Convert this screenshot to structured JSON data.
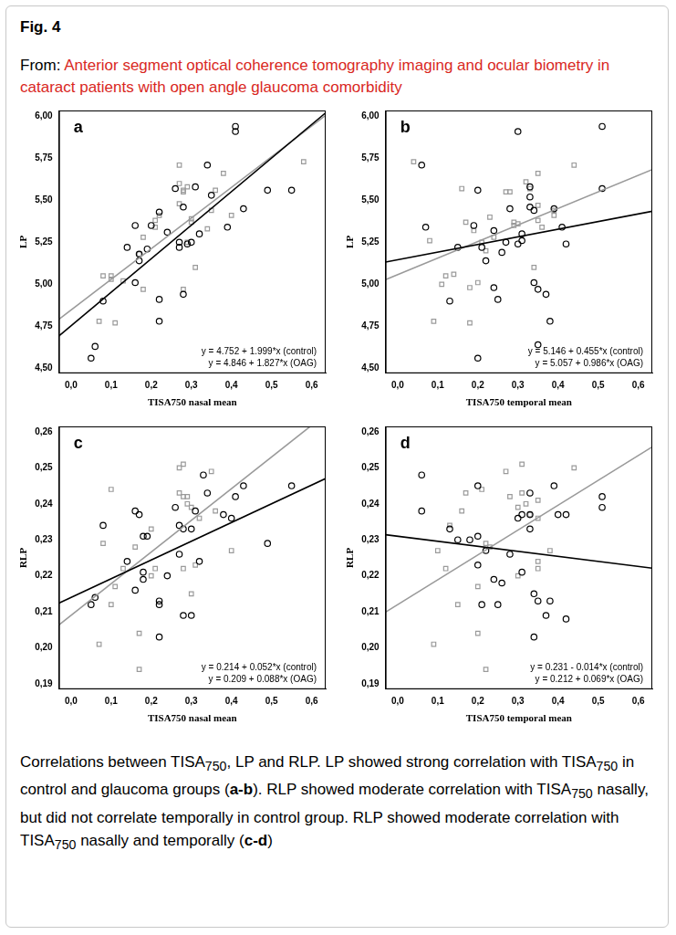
{
  "header": {
    "label": "Fig. 4",
    "from": "From: ",
    "source_title": "Anterior segment optical coherence tomography imaging and ocular biometry in cataract patients with open angle glaucoma comorbidity"
  },
  "chart_data": [
    {
      "type": "scatter",
      "panel": "a",
      "x_label": "TISA750 nasal mean",
      "y_label": "LP",
      "grid": false,
      "xlim": [
        -0.03,
        0.635
      ],
      "xticks": [
        {
          "value": 0,
          "label": "0,0"
        },
        {
          "value": 0.1,
          "label": "0,1"
        },
        {
          "value": 0.2,
          "label": "0,2"
        },
        {
          "value": 0.3,
          "label": "0,3"
        },
        {
          "value": 0.4,
          "label": "0,4"
        },
        {
          "value": 0.5,
          "label": "0,5"
        },
        {
          "value": 0.6,
          "label": "0,6"
        }
      ],
      "ylim": [
        4.47,
        6.035
      ],
      "yticks": [
        {
          "value": 4.5,
          "label": "4,50"
        },
        {
          "value": 4.75,
          "label": "4,75"
        },
        {
          "value": 5.0,
          "label": "5,00"
        },
        {
          "value": 5.25,
          "label": "5,25"
        },
        {
          "value": 5.5,
          "label": "5,50"
        },
        {
          "value": 5.75,
          "label": "5,75"
        },
        {
          "value": 6.0,
          "label": "6,00"
        }
      ],
      "series": [
        {
          "color": "#000000",
          "marker": "circle",
          "x": [
            0.05,
            0.06,
            0.08,
            0.14,
            0.16,
            0.16,
            0.17,
            0.17,
            0.19,
            0.2,
            0.22,
            0.22,
            0.22,
            0.24,
            0.26,
            0.27,
            0.27,
            0.28,
            0.28,
            0.29,
            0.3,
            0.31,
            0.32,
            0.34,
            0.35,
            0.39,
            0.41,
            0.41,
            0.43,
            0.49,
            0.55
          ],
          "values": [
            4.56,
            4.63,
            4.9,
            5.22,
            5.35,
            5.01,
            5.18,
            5.14,
            5.21,
            5.35,
            5.43,
            4.78,
            4.91,
            5.31,
            5.57,
            5.22,
            5.25,
            4.94,
            5.46,
            5.24,
            5.25,
            5.58,
            5.3,
            5.71,
            5.53,
            5.34,
            5.94,
            5.91,
            5.45,
            5.56,
            5.56
          ],
          "fit": {
            "intercept": 4.752,
            "slope": 1.999,
            "label": "y = 4.752 + 1.999*x (control)"
          }
        },
        {
          "color": "#9a9a9a",
          "marker": "square",
          "x": [
            0.07,
            0.08,
            0.1,
            0.1,
            0.11,
            0.13,
            0.17,
            0.18,
            0.18,
            0.21,
            0.21,
            0.22,
            0.27,
            0.27,
            0.27,
            0.28,
            0.28,
            0.28,
            0.29,
            0.3,
            0.3,
            0.31,
            0.34,
            0.35,
            0.36,
            0.38,
            0.4,
            0.29,
            0.58
          ],
          "values": [
            4.78,
            5.05,
            5.05,
            5.03,
            4.77,
            5.02,
            5.18,
            4.97,
            5.28,
            5.38,
            5.34,
            5.41,
            5.71,
            5.6,
            5.48,
            5.55,
            5.56,
            4.97,
            5.58,
            5.39,
            5.37,
            5.1,
            5.33,
            5.44,
            5.56,
            5.66,
            5.41,
            5.25,
            5.73
          ],
          "fit": {
            "intercept": 4.846,
            "slope": 1.827,
            "label": "y = 4.846 + 1.827*x (OAG)"
          }
        }
      ]
    },
    {
      "type": "scatter",
      "panel": "b",
      "x_label": "TISA750 temporal mean",
      "y_label": "LP",
      "grid": false,
      "xlim": [
        -0.03,
        0.635
      ],
      "xticks": [
        {
          "value": 0,
          "label": "0,0"
        },
        {
          "value": 0.1,
          "label": "0,1"
        },
        {
          "value": 0.2,
          "label": "0,2"
        },
        {
          "value": 0.3,
          "label": "0,3"
        },
        {
          "value": 0.4,
          "label": "0,4"
        },
        {
          "value": 0.5,
          "label": "0,5"
        },
        {
          "value": 0.6,
          "label": "0,6"
        }
      ],
      "ylim": [
        4.47,
        6.035
      ],
      "yticks": [
        {
          "value": 4.5,
          "label": "4,50"
        },
        {
          "value": 4.75,
          "label": "4,75"
        },
        {
          "value": 5.0,
          "label": "5,00"
        },
        {
          "value": 5.25,
          "label": "5,25"
        },
        {
          "value": 5.5,
          "label": "5,50"
        },
        {
          "value": 5.75,
          "label": "5,75"
        },
        {
          "value": 6.0,
          "label": "6,00"
        }
      ],
      "series": [
        {
          "color": "#000000",
          "marker": "circle",
          "x": [
            0.06,
            0.07,
            0.13,
            0.15,
            0.19,
            0.2,
            0.2,
            0.21,
            0.22,
            0.24,
            0.24,
            0.25,
            0.26,
            0.27,
            0.28,
            0.3,
            0.3,
            0.31,
            0.31,
            0.33,
            0.33,
            0.33,
            0.34,
            0.34,
            0.35,
            0.35,
            0.37,
            0.38,
            0.39,
            0.41,
            0.42,
            0.51,
            0.51
          ],
          "values": [
            5.71,
            5.34,
            4.9,
            5.22,
            5.35,
            5.56,
            4.56,
            5.22,
            5.14,
            5.32,
            4.98,
            4.91,
            5.19,
            5.25,
            5.45,
            5.91,
            5.24,
            5.26,
            5.3,
            5.46,
            5.58,
            5.52,
            5.44,
            5.01,
            4.64,
            4.97,
            4.94,
            4.78,
            5.45,
            5.34,
            5.24,
            5.94,
            5.57
          ],
          "fit": {
            "intercept": 5.146,
            "slope": 0.455,
            "label": "y = 5.146 + 0.455*x (control)"
          }
        },
        {
          "color": "#9a9a9a",
          "marker": "square",
          "x": [
            0.04,
            0.08,
            0.09,
            0.11,
            0.12,
            0.14,
            0.16,
            0.17,
            0.18,
            0.19,
            0.2,
            0.21,
            0.22,
            0.23,
            0.24,
            0.27,
            0.28,
            0.29,
            0.29,
            0.3,
            0.32,
            0.33,
            0.34,
            0.35,
            0.35,
            0.35,
            0.36,
            0.39,
            0.39,
            0.44,
            0.18
          ],
          "values": [
            5.73,
            5.26,
            4.78,
            5.0,
            5.05,
            5.06,
            5.57,
            5.37,
            4.77,
            5.32,
            5.01,
            5.25,
            5.2,
            5.4,
            5.28,
            5.55,
            5.55,
            5.37,
            5.35,
            5.36,
            5.61,
            5.57,
            5.1,
            5.66,
            5.47,
            5.38,
            5.34,
            5.44,
            5.41,
            5.71,
            4.98
          ],
          "fit": {
            "intercept": 5.057,
            "slope": 0.986,
            "label": "y = 5.057 + 0.986*x (OAG)"
          }
        }
      ]
    },
    {
      "type": "scatter",
      "panel": "c",
      "x_label": "TISA750 nasal mean",
      "y_label": "RLP",
      "grid": false,
      "xlim": [
        -0.03,
        0.635
      ],
      "xticks": [
        {
          "value": 0,
          "label": "0,0"
        },
        {
          "value": 0.1,
          "label": "0,1"
        },
        {
          "value": 0.2,
          "label": "0,2"
        },
        {
          "value": 0.3,
          "label": "0,3"
        },
        {
          "value": 0.4,
          "label": "0,4"
        },
        {
          "value": 0.5,
          "label": "0,5"
        },
        {
          "value": 0.6,
          "label": "0,6"
        }
      ],
      "ylim": [
        0.1885,
        0.2615
      ],
      "yticks": [
        {
          "value": 0.19,
          "label": "0,19"
        },
        {
          "value": 0.2,
          "label": "0,20"
        },
        {
          "value": 0.21,
          "label": "0,21"
        },
        {
          "value": 0.22,
          "label": "0,22"
        },
        {
          "value": 0.23,
          "label": "0,23"
        },
        {
          "value": 0.24,
          "label": "0,24"
        },
        {
          "value": 0.25,
          "label": "0,25"
        },
        {
          "value": 0.26,
          "label": "0,26"
        }
      ],
      "series": [
        {
          "color": "#000000",
          "marker": "circle",
          "x": [
            0.05,
            0.06,
            0.08,
            0.14,
            0.16,
            0.16,
            0.17,
            0.18,
            0.18,
            0.18,
            0.19,
            0.22,
            0.22,
            0.22,
            0.24,
            0.26,
            0.27,
            0.27,
            0.28,
            0.28,
            0.3,
            0.3,
            0.31,
            0.32,
            0.33,
            0.34,
            0.38,
            0.4,
            0.41,
            0.43,
            0.49,
            0.55
          ],
          "values": [
            0.212,
            0.214,
            0.234,
            0.224,
            0.216,
            0.238,
            0.237,
            0.231,
            0.219,
            0.221,
            0.231,
            0.213,
            0.212,
            0.203,
            0.22,
            0.239,
            0.234,
            0.226,
            0.233,
            0.209,
            0.233,
            0.209,
            0.238,
            0.224,
            0.248,
            0.243,
            0.237,
            0.236,
            0.242,
            0.245,
            0.229,
            0.245
          ],
          "fit": {
            "intercept": 0.214,
            "slope": 0.052,
            "label": "y = 0.214 + 0.052*x (control)"
          }
        },
        {
          "color": "#9a9a9a",
          "marker": "square",
          "x": [
            0.07,
            0.08,
            0.1,
            0.1,
            0.11,
            0.13,
            0.16,
            0.17,
            0.17,
            0.2,
            0.2,
            0.21,
            0.27,
            0.27,
            0.28,
            0.28,
            0.28,
            0.29,
            0.29,
            0.3,
            0.3,
            0.31,
            0.32,
            0.35,
            0.36,
            0.4
          ],
          "values": [
            0.201,
            0.229,
            0.244,
            0.212,
            0.217,
            0.222,
            0.228,
            0.204,
            0.194,
            0.233,
            0.22,
            0.222,
            0.25,
            0.243,
            0.251,
            0.242,
            0.222,
            0.242,
            0.24,
            0.239,
            0.215,
            0.223,
            0.236,
            0.249,
            0.238,
            0.227
          ],
          "fit": {
            "intercept": 0.209,
            "slope": 0.088,
            "label": "y = 0.209 + 0.088*x (OAG)"
          }
        }
      ]
    },
    {
      "type": "scatter",
      "panel": "d",
      "x_label": "TISA750 temporal mean",
      "y_label": "RLP",
      "grid": false,
      "xlim": [
        -0.03,
        0.635
      ],
      "xticks": [
        {
          "value": 0,
          "label": "0,0"
        },
        {
          "value": 0.1,
          "label": "0,1"
        },
        {
          "value": 0.2,
          "label": "0,2"
        },
        {
          "value": 0.3,
          "label": "0,3"
        },
        {
          "value": 0.4,
          "label": "0,4"
        },
        {
          "value": 0.5,
          "label": "0,5"
        },
        {
          "value": 0.6,
          "label": "0,6"
        }
      ],
      "ylim": [
        0.1885,
        0.2615
      ],
      "yticks": [
        {
          "value": 0.19,
          "label": "0,19"
        },
        {
          "value": 0.2,
          "label": "0,20"
        },
        {
          "value": 0.21,
          "label": "0,21"
        },
        {
          "value": 0.22,
          "label": "0,22"
        },
        {
          "value": 0.23,
          "label": "0,23"
        },
        {
          "value": 0.24,
          "label": "0,24"
        },
        {
          "value": 0.25,
          "label": "0,25"
        },
        {
          "value": 0.26,
          "label": "0,26"
        }
      ],
      "series": [
        {
          "color": "#000000",
          "marker": "circle",
          "x": [
            0.06,
            0.06,
            0.13,
            0.15,
            0.18,
            0.2,
            0.2,
            0.2,
            0.21,
            0.22,
            0.24,
            0.25,
            0.26,
            0.28,
            0.3,
            0.31,
            0.31,
            0.33,
            0.33,
            0.33,
            0.34,
            0.34,
            0.35,
            0.37,
            0.38,
            0.39,
            0.4,
            0.42,
            0.42,
            0.51,
            0.51
          ],
          "values": [
            0.248,
            0.238,
            0.233,
            0.23,
            0.23,
            0.245,
            0.231,
            0.223,
            0.212,
            0.227,
            0.219,
            0.212,
            0.218,
            0.226,
            0.236,
            0.237,
            0.221,
            0.243,
            0.233,
            0.237,
            0.215,
            0.203,
            0.213,
            0.209,
            0.213,
            0.245,
            0.237,
            0.237,
            0.208,
            0.242,
            0.239
          ],
          "fit": {
            "intercept": 0.231,
            "slope": -0.014,
            "label": "y = 0.231 - 0.014*x (control)"
          }
        },
        {
          "color": "#9a9a9a",
          "marker": "square",
          "x": [
            0.09,
            0.1,
            0.12,
            0.13,
            0.15,
            0.16,
            0.17,
            0.2,
            0.2,
            0.21,
            0.22,
            0.22,
            0.23,
            0.27,
            0.28,
            0.3,
            0.31,
            0.31,
            0.32,
            0.33,
            0.35,
            0.35,
            0.35,
            0.35,
            0.38,
            0.44,
            0.3
          ],
          "values": [
            0.201,
            0.227,
            0.222,
            0.234,
            0.212,
            0.238,
            0.243,
            0.204,
            0.217,
            0.244,
            0.194,
            0.229,
            0.228,
            0.249,
            0.242,
            0.22,
            0.251,
            0.243,
            0.24,
            0.237,
            0.241,
            0.236,
            0.222,
            0.224,
            0.227,
            0.25,
            0.239
          ],
          "fit": {
            "intercept": 0.212,
            "slope": 0.069,
            "label": "y = 0.212 + 0.069*x (OAG)"
          }
        }
      ]
    }
  ],
  "caption": [
    "Correlations between TISA",
    {
      "sub": "750"
    },
    ", LP and RLP. LP showed strong correlation with TISA",
    {
      "sub": "750"
    },
    " in control and glaucoma groups (",
    {
      "bold": "a-b"
    },
    "). RLP showed moderate correlation with TISA",
    {
      "sub": "750"
    },
    " nasally, but did not correlate temporally in control group. RLP showed moderate correlation with TISA",
    {
      "sub": "750"
    },
    " nasally and temporally (",
    {
      "bold": "c-d"
    },
    ")"
  ]
}
